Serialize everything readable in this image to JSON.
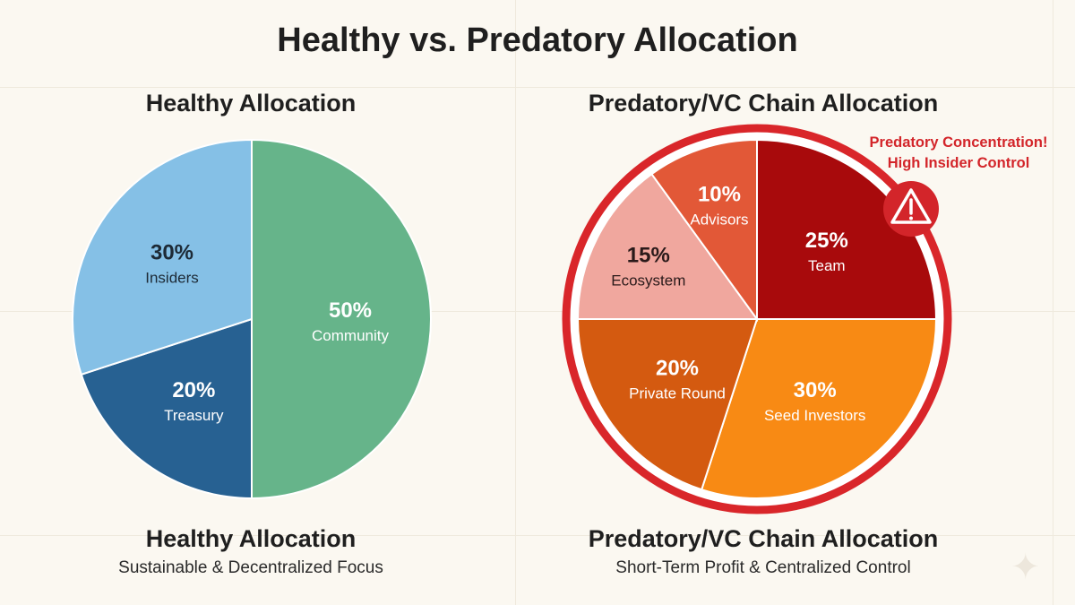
{
  "title": "Healthy vs. Predatory Allocation",
  "chart_data": [
    {
      "type": "pie",
      "title": "Healthy Allocation",
      "footer_title": "Healthy Allocation",
      "footer_subtitle": "Sustainable & Decentralized Focus",
      "slices": [
        {
          "label": "Community",
          "value": 50,
          "display": "50%",
          "color": "#66b48a",
          "text_color": "#ffffff"
        },
        {
          "label": "Treasury",
          "value": 20,
          "display": "20%",
          "color": "#276192",
          "text_color": "#ffffff"
        },
        {
          "label": "Insiders",
          "value": 30,
          "display": "30%",
          "color": "#85c0e6",
          "text_color": "#1d2a36"
        }
      ],
      "start": "top",
      "direction": "clockwise"
    },
    {
      "type": "pie",
      "title": "Predatory/VC Chain Allocation",
      "footer_title": "Predatory/VC Chain Allocation",
      "footer_subtitle": "Short-Term Profit & Centralized Control",
      "slices": [
        {
          "label": "Team",
          "value": 25,
          "display": "25%",
          "color": "#a80a0c",
          "text_color": "#ffffff"
        },
        {
          "label": "Seed Investors",
          "value": 30,
          "display": "30%",
          "color": "#f88a14",
          "text_color": "#ffffff"
        },
        {
          "label": "Private Round",
          "value": 20,
          "display": "20%",
          "color": "#d45a10",
          "text_color": "#ffffff"
        },
        {
          "label": "Ecosystem",
          "value": 15,
          "display": "15%",
          "color": "#f0a79e",
          "text_color": "#2a1a1a"
        },
        {
          "label": "Advisors",
          "value": 10,
          "display": "10%",
          "color": "#e25837",
          "text_color": "#ffffff"
        }
      ],
      "start": "top",
      "direction": "clockwise",
      "highlight_ring_color": "#d9262a",
      "annotation": {
        "line1": "Predatory Concentration!",
        "line2": "High Insider Control",
        "icon": "warning-icon",
        "color": "#d3252a"
      }
    }
  ]
}
